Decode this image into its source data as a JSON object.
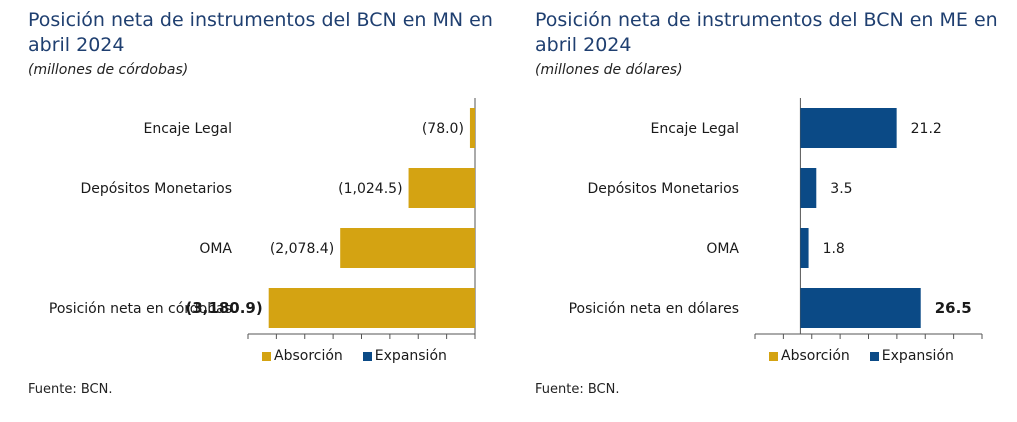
{
  "colors": {
    "absorcion": "#d4a312",
    "expansion": "#0b4a86",
    "axis": "#555555"
  },
  "chart_data": [
    {
      "type": "bar",
      "orientation": "horizontal",
      "title": "Posición neta de instrumentos del BCN en MN en abril 2024",
      "subtitle": "(millones de córdobas)",
      "source": "Fuente: BCN.",
      "categories": [
        "Encaje Legal",
        "Depósitos Monetarios",
        "OMA",
        "Posición neta en córdobas"
      ],
      "values": [
        -78.0,
        -1024.5,
        -2078.4,
        -3180.9
      ],
      "data_labels": [
        "(78.0)",
        "(1,024.5)",
        "(2,078.4)",
        "(3,180.9)"
      ],
      "bold_last_label": true,
      "xlim": [
        -3500,
        0
      ],
      "series_color": "#d4a312",
      "legend": [
        {
          "name": "Absorción",
          "color": "#d4a312"
        },
        {
          "name": "Expansión",
          "color": "#0b4a86"
        }
      ]
    },
    {
      "type": "bar",
      "orientation": "horizontal",
      "title": "Posición neta de instrumentos del BCN en ME en abril 2024",
      "subtitle": "(millones de dólares)",
      "source": "Fuente: BCN.",
      "categories": [
        "Encaje Legal",
        "Depósitos Monetarios",
        "OMA",
        "Posición neta en dólares"
      ],
      "values": [
        21.2,
        3.5,
        1.8,
        26.5
      ],
      "data_labels": [
        "21.2",
        "3.5",
        "1.8",
        "26.5"
      ],
      "bold_last_label": true,
      "xlim": [
        -10,
        40
      ],
      "series_color": "#0b4a86",
      "legend": [
        {
          "name": "Absorción",
          "color": "#d4a312"
        },
        {
          "name": "Expansión",
          "color": "#0b4a86"
        }
      ]
    }
  ]
}
